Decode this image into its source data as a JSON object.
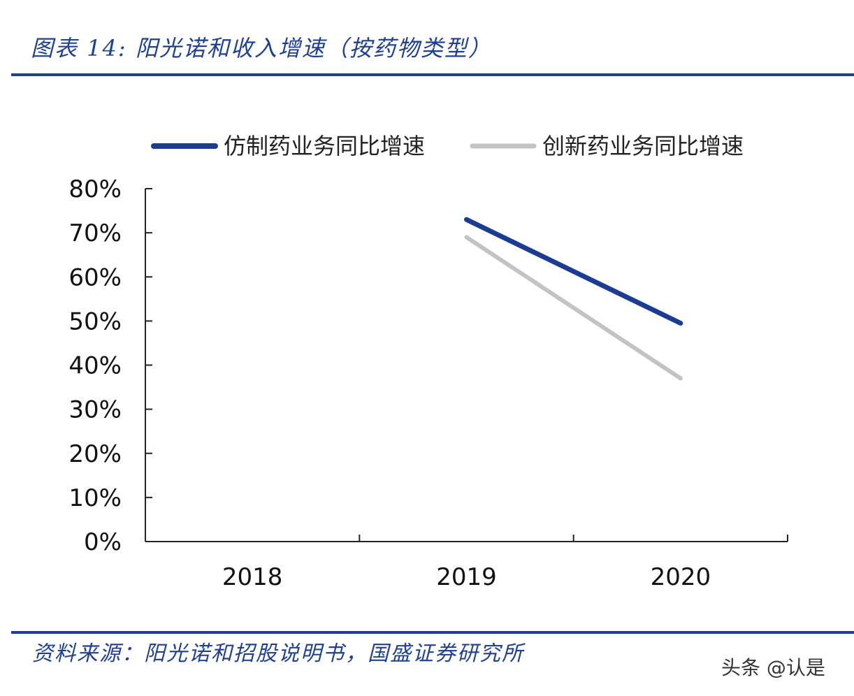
{
  "header": {
    "title": "图表 14:  阳光诺和收入增速（按药物类型）"
  },
  "footer": {
    "source": "资料来源：阳光诺和招股说明书，国盛证券研究所",
    "watermark": "头条 @认是"
  },
  "colors": {
    "accent": "#1f3f8f",
    "series_generic": "#1c3c94",
    "series_innovative": "#c3c3c3"
  },
  "chart_data": {
    "type": "line",
    "title": "",
    "xlabel": "",
    "ylabel": "",
    "categories": [
      "2018",
      "2019",
      "2020"
    ],
    "ylim": [
      0,
      80
    ],
    "yticks": [
      0,
      10,
      20,
      30,
      40,
      50,
      60,
      70,
      80
    ],
    "ytick_labels": [
      "0%",
      "10%",
      "20%",
      "30%",
      "40%",
      "50%",
      "60%",
      "70%",
      "80%"
    ],
    "grid": false,
    "legend_position": "top",
    "series": [
      {
        "name": "仿制药业务同比增速",
        "color": "#1c3c94",
        "values": [
          null,
          73,
          49.5
        ]
      },
      {
        "name": "创新药业务同比增速",
        "color": "#c3c3c3",
        "values": [
          null,
          69,
          37
        ]
      }
    ]
  }
}
